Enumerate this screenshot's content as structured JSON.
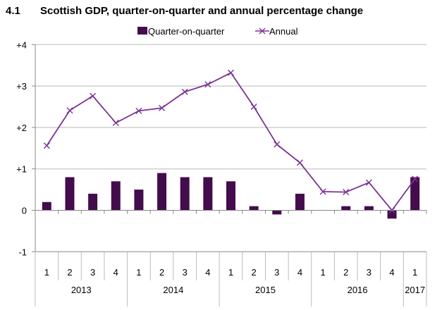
{
  "chart_data": {
    "type": "bar+line",
    "figure_number": "4.1",
    "title": "Scottish GDP, quarter-on-quarter and annual percentage change",
    "xlabel": "",
    "ylabel": "",
    "ylim": [
      -1,
      4
    ],
    "yticks": [
      -1,
      0,
      1,
      2,
      3,
      4
    ],
    "ytick_labels": [
      "-1",
      "0",
      "+1",
      "+2",
      "+3",
      "+4"
    ],
    "grid": true,
    "legend_position": "top-center",
    "categories": [
      "1",
      "2",
      "3",
      "4",
      "1",
      "2",
      "3",
      "4",
      "1",
      "2",
      "3",
      "4",
      "1",
      "2",
      "3",
      "4",
      "1"
    ],
    "years": [
      {
        "label": "2013",
        "span": 4
      },
      {
        "label": "2014",
        "span": 4
      },
      {
        "label": "2015",
        "span": 4
      },
      {
        "label": "2016",
        "span": 4
      },
      {
        "label": "2017",
        "span": 1
      }
    ],
    "series": [
      {
        "name": "Quarter-on-quarter",
        "type": "bar",
        "color": "#430C4C",
        "values": [
          0.2,
          0.8,
          0.4,
          0.7,
          0.5,
          0.9,
          0.8,
          0.8,
          0.7,
          0.1,
          -0.1,
          0.4,
          0.0,
          0.1,
          0.1,
          -0.2,
          0.8
        ]
      },
      {
        "name": "Annual",
        "type": "line",
        "color": "#7B3294",
        "marker": "x",
        "values": [
          1.56,
          2.41,
          2.76,
          2.11,
          2.4,
          2.47,
          2.86,
          3.04,
          3.32,
          2.5,
          1.59,
          1.15,
          0.45,
          0.44,
          0.67,
          0.0,
          0.76
        ]
      }
    ]
  }
}
